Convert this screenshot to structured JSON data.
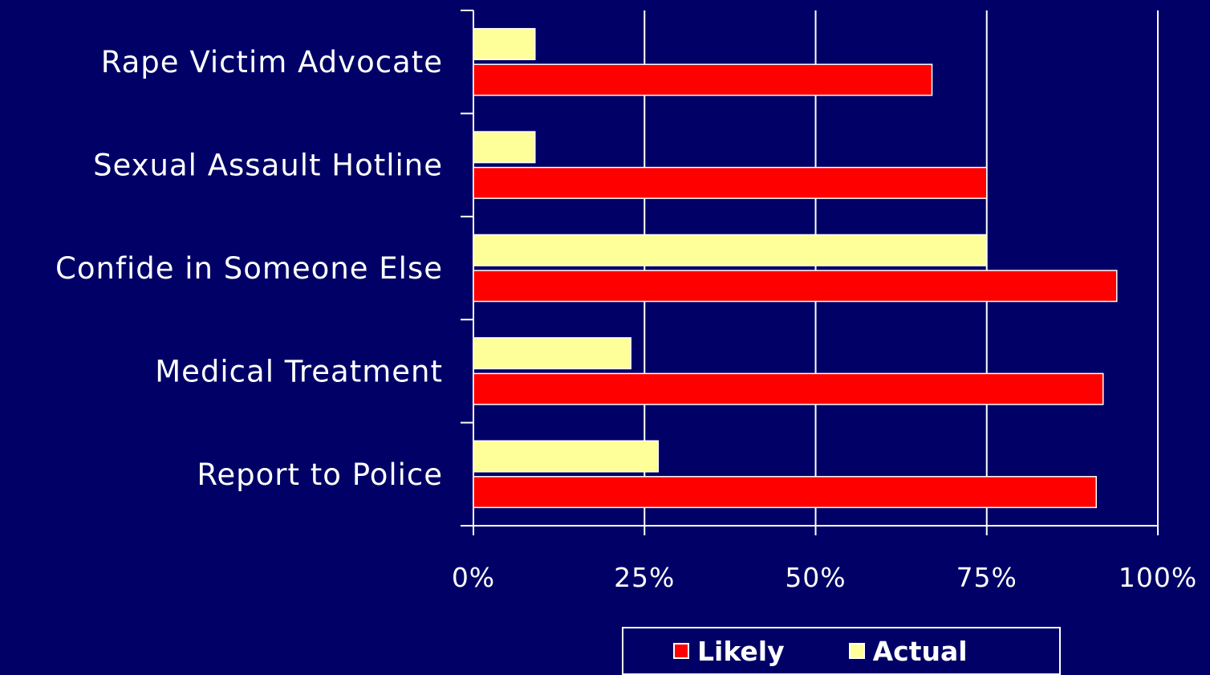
{
  "chart_data": {
    "type": "bar",
    "orientation": "horizontal",
    "categories": [
      "Rape Victim Advocate",
      "Sexual Assault Hotline",
      "Confide in Someone Else",
      "Medical Treatment",
      "Report to Police"
    ],
    "series": [
      {
        "name": "Actual",
        "color": "#ffff99",
        "values": [
          9,
          9,
          75,
          23,
          27
        ]
      },
      {
        "name": "Likely",
        "color": "#ff0000",
        "values": [
          67,
          75,
          94,
          92,
          91
        ]
      }
    ],
    "xlim": [
      0,
      100
    ],
    "x_ticks": [
      "0%",
      "25%",
      "50%",
      "75%",
      "100%"
    ],
    "x_tick_values": [
      0,
      25,
      50,
      75,
      100
    ],
    "grid": true,
    "legend_position": "bottom",
    "background": "#000066"
  },
  "legend": {
    "items": [
      {
        "label": "Likely",
        "color": "#ff0000"
      },
      {
        "label": "Actual",
        "color": "#ffff99"
      }
    ]
  }
}
